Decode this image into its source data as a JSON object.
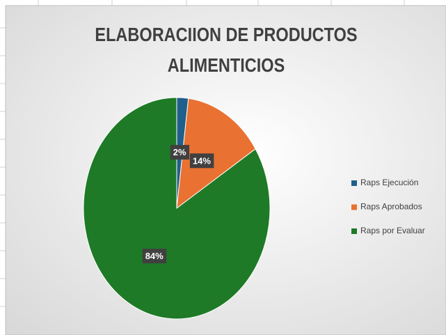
{
  "chart_data": {
    "type": "pie",
    "title": "ELABORACIION DE PRODUCTOS ALIMENTICIOS",
    "categories": [
      "Raps Ejecución",
      "Raps Aprobados",
      "Raps por Evaluar"
    ],
    "values": [
      2,
      14,
      84
    ],
    "value_labels": [
      "2%",
      "14%",
      "84%"
    ],
    "colors": [
      "#1f5f8b",
      "#e97132",
      "#1e7a26"
    ],
    "legend": "right"
  }
}
